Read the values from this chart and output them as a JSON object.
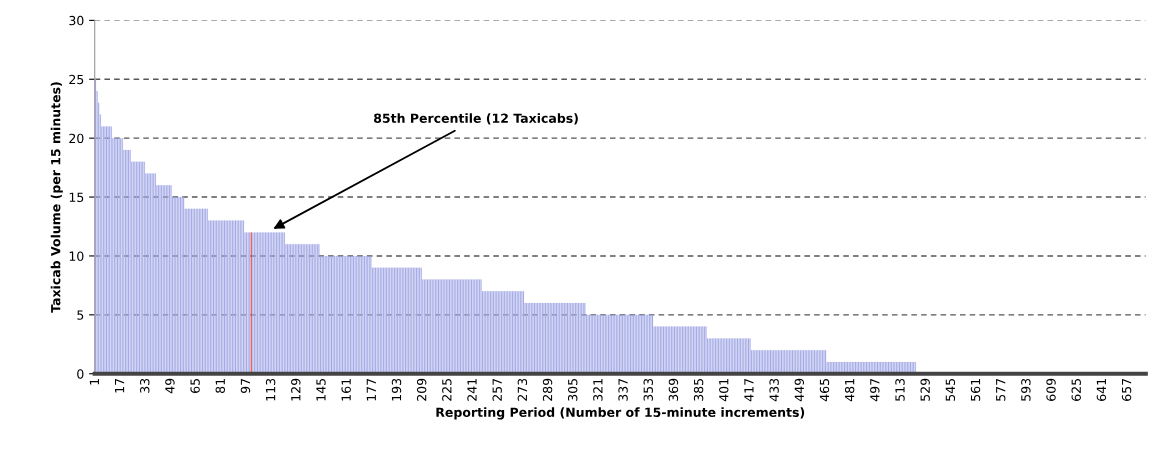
{
  "chart_data": {
    "type": "bar",
    "xlabel": "Reporting Period (Number of 15-minute increments)",
    "ylabel": "Taxicab Volume (per 15 minutes)",
    "ylim": [
      0,
      30
    ],
    "yticks": [
      0,
      5,
      10,
      15,
      20,
      25,
      30
    ],
    "grid": "y",
    "line_style": "dashed",
    "annotations": [
      "85th Percentile (12 Taxicabs)"
    ],
    "categories": [
      "1",
      null,
      null,
      null,
      null,
      null,
      null,
      null,
      null,
      null,
      null,
      null,
      null,
      null,
      null,
      null,
      "17",
      null,
      null,
      null,
      null,
      null,
      null,
      null,
      null,
      null,
      null,
      null,
      null,
      null,
      null,
      null,
      "33",
      null,
      null,
      null,
      null,
      null,
      null,
      null,
      null,
      null,
      null,
      null,
      null,
      null,
      null,
      null,
      "49",
      null,
      null,
      null,
      null,
      null,
      null,
      null,
      null,
      null,
      null,
      null,
      null,
      null,
      null,
      null,
      "65",
      null,
      null,
      null,
      null,
      null,
      null,
      null,
      null,
      null,
      null,
      null,
      null,
      null,
      null,
      null,
      "81",
      null,
      null,
      null,
      null,
      null,
      null,
      null,
      null,
      null,
      null,
      null,
      null,
      null,
      null,
      null,
      "97",
      null,
      null,
      null,
      null,
      null,
      null,
      null,
      null,
      null,
      null,
      null,
      null,
      null,
      null,
      null,
      "113",
      null,
      null,
      null,
      null,
      null,
      null,
      null,
      null,
      null,
      null,
      null,
      null,
      null,
      null,
      null,
      "129",
      null,
      null,
      null,
      null,
      null,
      null,
      null,
      null,
      null,
      null,
      null,
      null,
      null,
      null,
      null,
      "145",
      null,
      null,
      null,
      null,
      null,
      null,
      null,
      null,
      null,
      null,
      null,
      null,
      null,
      null,
      null,
      "161",
      null,
      null,
      null,
      null,
      null,
      null,
      null,
      null,
      null,
      null,
      null,
      null,
      null,
      null,
      null,
      "177",
      null,
      null,
      null,
      null,
      null,
      null,
      null,
      null,
      null,
      null,
      null,
      null,
      null,
      null,
      null,
      "193",
      null,
      null,
      null,
      null,
      null,
      null,
      null,
      null,
      null,
      null,
      null,
      null,
      null,
      null,
      null,
      "209",
      null,
      null,
      null,
      null,
      null,
      null,
      null,
      null,
      null,
      null,
      null,
      null,
      null,
      null,
      null,
      "225",
      null,
      null,
      null,
      null,
      null,
      null,
      null,
      null,
      null,
      null,
      null,
      null,
      null,
      null,
      null,
      "241",
      null,
      null,
      null,
      null,
      null,
      null,
      null,
      null,
      null,
      null,
      null,
      null,
      null,
      null,
      null,
      "257",
      null,
      null,
      null,
      null,
      null,
      null,
      null,
      null,
      null,
      null,
      null,
      null,
      null,
      null,
      null,
      "273",
      null,
      null,
      null,
      null,
      null,
      null,
      null,
      null,
      null,
      null,
      null,
      null,
      null,
      null,
      null,
      "289",
      null,
      null,
      null,
      null,
      null,
      null,
      null,
      null,
      null,
      null,
      null,
      null,
      null,
      null,
      null,
      "305",
      null,
      null,
      null,
      null,
      null,
      null,
      null,
      null,
      null,
      null,
      null,
      null,
      null,
      null,
      null,
      "321",
      null,
      null,
      null,
      null,
      null,
      null,
      null,
      null,
      null,
      null,
      null,
      null,
      null,
      null,
      null,
      "337",
      null,
      null,
      null,
      null,
      null,
      null,
      null,
      null,
      null,
      null,
      null,
      null,
      null,
      null,
      null,
      "353",
      null,
      null,
      null,
      null,
      null,
      null,
      null,
      null,
      null,
      null,
      null,
      null,
      null,
      null,
      null,
      "369",
      null,
      null,
      null,
      null,
      null,
      null,
      null,
      null,
      null,
      null,
      null,
      null,
      null,
      null,
      null,
      "385",
      null,
      null,
      null,
      null,
      null,
      null,
      null,
      null,
      null,
      null,
      null,
      null,
      null,
      null,
      null,
      "401",
      null,
      null,
      null,
      null,
      null,
      null,
      null,
      null,
      null,
      null,
      null,
      null,
      null,
      null,
      null,
      "417",
      null,
      null,
      null,
      null,
      null,
      null,
      null,
      null,
      null,
      null,
      null,
      null,
      null,
      null,
      null,
      "433",
      null,
      null,
      null,
      null,
      null,
      null,
      null,
      null,
      null,
      null,
      null,
      null,
      null,
      null,
      null,
      "449",
      null,
      null,
      null,
      null,
      null,
      null,
      null,
      null,
      null,
      null,
      null,
      null,
      null,
      null,
      null,
      "465",
      null,
      null,
      null,
      null,
      null,
      null,
      null,
      null,
      null,
      null,
      null,
      null,
      null,
      null,
      null,
      "481",
      null,
      null,
      null,
      null,
      null,
      null,
      null,
      null,
      null,
      null,
      null,
      null,
      null,
      null,
      null,
      "497",
      null,
      null,
      null,
      null,
      null,
      null,
      null,
      null,
      null,
      null,
      null,
      null,
      null,
      null,
      null,
      "513",
      null,
      null,
      null,
      null,
      null,
      null,
      null,
      null,
      null,
      null,
      null,
      null,
      null,
      null,
      null,
      "529",
      null,
      null,
      null,
      null,
      null,
      null,
      null,
      null,
      null,
      null,
      null,
      null,
      null,
      null,
      null,
      "545",
      null,
      null,
      null,
      null,
      null,
      null,
      null,
      null,
      null,
      null,
      null,
      null,
      null,
      null,
      null,
      "561",
      null,
      null,
      null,
      null,
      null,
      null,
      null,
      null,
      null,
      null,
      null,
      null,
      null,
      null,
      null,
      "577",
      null,
      null,
      null,
      null,
      null,
      null,
      null,
      null,
      null,
      null,
      null,
      null,
      null,
      null,
      null,
      "593",
      null,
      null,
      null,
      null,
      null,
      null,
      null,
      null,
      null,
      null,
      null,
      null,
      null,
      null,
      null,
      "609",
      null,
      null,
      null,
      null,
      null,
      null,
      null,
      null,
      null,
      null,
      null,
      null,
      null,
      null,
      null,
      "625",
      null,
      null,
      null,
      null,
      null,
      null,
      null,
      null,
      null,
      null,
      null,
      null,
      null,
      null,
      null,
      "641",
      null,
      null,
      null,
      null,
      null,
      null,
      null,
      null,
      null,
      null,
      null,
      null,
      null,
      null,
      null,
      "657",
      null,
      null,
      null,
      null,
      null,
      null,
      null,
      null,
      null,
      null,
      null
    ],
    "values": [
      25,
      24,
      23,
      22,
      21,
      21,
      21,
      21,
      21,
      21,
      21,
      20,
      20,
      20,
      20,
      20,
      20,
      20,
      19,
      19,
      19,
      19,
      19,
      18,
      18,
      18,
      18,
      18,
      18,
      18,
      18,
      18,
      17,
      17,
      17,
      17,
      17,
      17,
      17,
      16,
      16,
      16,
      16,
      16,
      16,
      16,
      16,
      16,
      16,
      15,
      15,
      15,
      15,
      15,
      15,
      15,
      15,
      14,
      14,
      14,
      14,
      14,
      14,
      14,
      14,
      14,
      14,
      14,
      14,
      14,
      14,
      14,
      13,
      13,
      13,
      13,
      13,
      13,
      13,
      13,
      13,
      13,
      13,
      13,
      13,
      13,
      13,
      13,
      13,
      13,
      13,
      13,
      13,
      13,
      13,
      12,
      12,
      12,
      12,
      12,
      12,
      12,
      12,
      12,
      12,
      12,
      12,
      12,
      12,
      12,
      12,
      12,
      12,
      12,
      12,
      12,
      12,
      12,
      12,
      12,
      12,
      11,
      11,
      11,
      11,
      11,
      11,
      11,
      11,
      11,
      11,
      11,
      11,
      11,
      11,
      11,
      11,
      11,
      11,
      11,
      11,
      11,
      11,
      10,
      10,
      10,
      10,
      10,
      10,
      10,
      10,
      10,
      10,
      10,
      10,
      10,
      10,
      10,
      10,
      10,
      10,
      10,
      10,
      10,
      10,
      10,
      10,
      10,
      10,
      10,
      10,
      10,
      10,
      10,
      10,
      10,
      9,
      9,
      9,
      9,
      9,
      9,
      9,
      9,
      9,
      9,
      9,
      9,
      9,
      9,
      9,
      9,
      9,
      9,
      9,
      9,
      9,
      9,
      9,
      9,
      9,
      9,
      9,
      9,
      9,
      9,
      9,
      9,
      8,
      8,
      8,
      8,
      8,
      8,
      8,
      8,
      8,
      8,
      8,
      8,
      8,
      8,
      8,
      8,
      8,
      8,
      8,
      8,
      8,
      8,
      8,
      8,
      8,
      8,
      8,
      8,
      8,
      8,
      8,
      8,
      8,
      8,
      8,
      8,
      8,
      8,
      7,
      7,
      7,
      7,
      7,
      7,
      7,
      7,
      7,
      7,
      7,
      7,
      7,
      7,
      7,
      7,
      7,
      7,
      7,
      7,
      7,
      7,
      7,
      7,
      7,
      7,
      7,
      6,
      6,
      6,
      6,
      6,
      6,
      6,
      6,
      6,
      6,
      6,
      6,
      6,
      6,
      6,
      6,
      6,
      6,
      6,
      6,
      6,
      6,
      6,
      6,
      6,
      6,
      6,
      6,
      6,
      6,
      6,
      6,
      6,
      6,
      6,
      6,
      6,
      6,
      6,
      5,
      5,
      5,
      5,
      5,
      5,
      5,
      5,
      5,
      5,
      5,
      5,
      5,
      5,
      5,
      5,
      5,
      5,
      5,
      5,
      5,
      5,
      5,
      5,
      5,
      5,
      5,
      5,
      5,
      5,
      5,
      5,
      5,
      5,
      5,
      5,
      5,
      5,
      5,
      5,
      5,
      5,
      5,
      4,
      4,
      4,
      4,
      4,
      4,
      4,
      4,
      4,
      4,
      4,
      4,
      4,
      4,
      4,
      4,
      4,
      4,
      4,
      4,
      4,
      4,
      4,
      4,
      4,
      4,
      4,
      4,
      4,
      4,
      4,
      4,
      4,
      4,
      3,
      3,
      3,
      3,
      3,
      3,
      3,
      3,
      3,
      3,
      3,
      3,
      3,
      3,
      3,
      3,
      3,
      3,
      3,
      3,
      3,
      3,
      3,
      3,
      3,
      3,
      3,
      3,
      2,
      2,
      2,
      2,
      2,
      2,
      2,
      2,
      2,
      2,
      2,
      2,
      2,
      2,
      2,
      2,
      2,
      2,
      2,
      2,
      2,
      2,
      2,
      2,
      2,
      2,
      2,
      2,
      2,
      2,
      2,
      2,
      2,
      2,
      2,
      2,
      2,
      2,
      2,
      2,
      2,
      2,
      2,
      2,
      2,
      2,
      2,
      2,
      1,
      1,
      1,
      1,
      1,
      1,
      1,
      1,
      1,
      1,
      1,
      1,
      1,
      1,
      1,
      1,
      1,
      1,
      1,
      1,
      1,
      1,
      1,
      1,
      1,
      1,
      1,
      1,
      1,
      1,
      1,
      1,
      1,
      1,
      1,
      1,
      1,
      1,
      1,
      1,
      1,
      1,
      1,
      1,
      1,
      1,
      1,
      1,
      1,
      1,
      1,
      1,
      1,
      1,
      1,
      1,
      1,
      0,
      0,
      0,
      0,
      0,
      0,
      0,
      0,
      0,
      0,
      0,
      0,
      0,
      0,
      0,
      0,
      0,
      0,
      0,
      0,
      0,
      0,
      0,
      0,
      0,
      0,
      0,
      0,
      0,
      0,
      0,
      0,
      0,
      0,
      0,
      0,
      0,
      0,
      0,
      0,
      0,
      0,
      0,
      0,
      0,
      0,
      0,
      0,
      0,
      0,
      0,
      0,
      0,
      0,
      0,
      0,
      0,
      0,
      0,
      0,
      0,
      0,
      0,
      0,
      0,
      0,
      0,
      0,
      0,
      0,
      0,
      0,
      0,
      0,
      0,
      0,
      0,
      0,
      0,
      0,
      0,
      0,
      0,
      0,
      0,
      0,
      0,
      0,
      0,
      0,
      0,
      0,
      0,
      0,
      0,
      0,
      0,
      0,
      0,
      0,
      0,
      0,
      0,
      0,
      0,
      0,
      0,
      0,
      0,
      0,
      0,
      0,
      0,
      0,
      0,
      0,
      0,
      0,
      0,
      0,
      0,
      0,
      0,
      0,
      0,
      0,
      0,
      0,
      0,
      0,
      0,
      0,
      0,
      0,
      0,
      0,
      0,
      0,
      0,
      0,
      0,
      0,
      0,
      0,
      0,
      0
    ],
    "colors": [
      "#a3a9e6",
      "#a3a9e6",
      "#a3a9e6",
      "#a3a9e6",
      "#a3a9e6",
      "#a3a9e6",
      "#a3a9e6",
      "#a3a9e6",
      "#a3a9e6",
      "#a3a9e6",
      "#a3a9e6",
      "#a3a9e6",
      "#a3a9e6",
      "#a3a9e6",
      "#a3a9e6",
      "#a3a9e6",
      "#a3a9e6",
      "#a3a9e6",
      "#a3a9e6",
      "#a3a9e6",
      "#a3a9e6",
      "#a3a9e6",
      "#a3a9e6",
      "#a3a9e6",
      "#a3a9e6",
      "#a3a9e6",
      "#a3a9e6",
      "#a3a9e6",
      "#a3a9e6",
      "#a3a9e6",
      "#a3a9e6",
      "#a3a9e6",
      "#a3a9e6",
      "#a3a9e6",
      "#a3a9e6",
      "#a3a9e6",
      "#a3a9e6",
      "#a3a9e6",
      "#a3a9e6",
      "#a3a9e6",
      "#a3a9e6",
      "#a3a9e6",
      "#a3a9e6",
      "#a3a9e6",
      "#a3a9e6",
      "#a3a9e6",
      "#a3a9e6",
      "#a3a9e6",
      "#a3a9e6",
      "#a3a9e6",
      "#a3a9e6",
      "#a3a9e6",
      "#a3a9e6",
      "#a3a9e6",
      "#a3a9e6",
      "#a3a9e6",
      "#a3a9e6",
      "#a3a9e6",
      "#a3a9e6",
      "#a3a9e6",
      "#a3a9e6",
      "#a3a9e6",
      "#a3a9e6",
      "#a3a9e6",
      "#a3a9e6",
      "#a3a9e6",
      "#a3a9e6",
      "#a3a9e6",
      "#a3a9e6",
      "#a3a9e6",
      "#a3a9e6",
      "#a3a9e6",
      "#a3a9e6",
      "#a3a9e6",
      "#a3a9e6",
      "#a3a9e6",
      "#a3a9e6",
      "#a3a9e6",
      "#a3a9e6",
      "#a3a9e6",
      "#a3a9e6",
      "#a3a9e6",
      "#a3a9e6",
      "#a3a9e6",
      "#a3a9e6",
      "#a3a9e6",
      "#a3a9e6",
      "#a3a9e6",
      "#a3a9e6",
      "#a3a9e6",
      "#a3a9e6",
      "#a3a9e6",
      "#a3a9e6",
      "#a3a9e6",
      "#a3a9e6",
      "#a3a9e6",
      "#a3a9e6",
      "#a3a9e6",
      "#a3a9e6",
      "#e03a3a",
      "#a3a9e6",
      "#a3a9e6",
      "#a3a9e6",
      "#a3a9e6",
      "#a3a9e6",
      "#a3a9e6",
      "#a3a9e6",
      "#a3a9e6",
      "#a3a9e6",
      "#a3a9e6",
      "#a3a9e6",
      "#a3a9e6",
      "#a3a9e6",
      "#a3a9e6",
      "#a3a9e6",
      "#a3a9e6",
      "#a3a9e6",
      "#a3a9e6",
      "#a3a9e6",
      "#a3a9e6",
      "#a3a9e6",
      "#a3a9e6",
      "#a3a9e6",
      "#a3a9e6",
      "#a3a9e6",
      "#a3a9e6",
      "#a3a9e6",
      "#a3a9e6",
      "#a3a9e6",
      "#a3a9e6",
      "#a3a9e6",
      "#a3a9e6",
      "#a3a9e6",
      "#a3a9e6",
      "#a3a9e6",
      "#a3a9e6",
      "#a3a9e6",
      "#a3a9e6",
      "#a3a9e6",
      "#a3a9e6",
      "#a3a9e6",
      "#a3a9e6",
      "#a3a9e6",
      "#a3a9e6",
      "#a3a9e6",
      "#a3a9e6",
      "#a3a9e6",
      "#a3a9e6",
      "#a3a9e6",
      "#a3a9e6",
      "#a3a9e6",
      "#a3a9e6",
      "#a3a9e6",
      "#a3a9e6",
      "#a3a9e6",
      "#a3a9e6",
      "#a3a9e6",
      "#a3a9e6",
      "#a3a9e6",
      "#a3a9e6",
      "#a3a9e6",
      "#a3a9e6",
      "#a3a9e6",
      "#a3a9e6",
      "#a3a9e6",
      "#a3a9e6",
      "#a3a9e6",
      "#a3a9e6",
      "#a3a9e6",
      "#a3a9e6",
      "#a3a9e6",
      "#a3a9e6",
      "#a3a9e6",
      "#a3a9e6",
      "#a3a9e6",
      "#a3a9e6",
      "#a3a9e6",
      "#a3a9e6",
      "#a3a9e6",
      "#a3a9e6",
      "#a3a9e6",
      "#a3a9e6",
      "#a3a9e6",
      "#a3a9e6",
      "#a3a9e6",
      "#a3a9e6",
      "#a3a9e6",
      "#a3a9e6",
      "#a3a9e6",
      "#a3a9e6",
      "#a3a9e6",
      "#a3a9e6",
      "#a3a9e6",
      "#a3a9e6",
      "#a3a9e6",
      "#a3a9e6",
      "#a3a9e6",
      "#a3a9e6",
      "#a3a9e6",
      "#a3a9e6",
      "#a3a9e6",
      "#a3a9e6",
      "#a3a9e6",
      "#a3a9e6",
      "#a3a9e6",
      "#a3a9e6",
      "#a3a9e6",
      "#a3a9e6",
      "#a3a9e6",
      "#a3a9e6",
      "#a3a9e6",
      "#a3a9e6",
      "#a3a9e6",
      "#a3a9e6",
      "#a3a9e6",
      "#a3a9e6",
      "#a3a9e6",
      "#a3a9e6",
      "#a3a9e6",
      "#a3a9e6",
      "#a3a9e6",
      "#a3a9e6",
      "#a3a9e6",
      "#a3a9e6",
      "#a3a9e6",
      "#a3a9e6",
      "#a3a9e6",
      "#a3a9e6",
      "#a3a9e6",
      "#a3a9e6",
      "#a3a9e6",
      "#a3a9e6",
      "#a3a9e6",
      "#a3a9e6",
      "#a3a9e6",
      "#a3a9e6",
      "#a3a9e6",
      "#a3a9e6",
      "#a3a9e6",
      "#a3a9e6",
      "#a3a9e6",
      "#a3a9e6",
      "#a3a9e6",
      "#a3a9e6",
      "#a3a9e6",
      "#a3a9e6",
      "#a3a9e6",
      "#a3a9e6",
      "#a3a9e6",
      "#a3a9e6",
      "#a3a9e6",
      "#a3a9e6",
      "#a3a9e6",
      "#a3a9e6",
      "#a3a9e6",
      "#a3a9e6",
      "#a3a9e6",
      "#a3a9e6",
      "#a3a9e6",
      "#a3a9e6",
      "#a3a9e6",
      "#a3a9e6",
      "#a3a9e6",
      "#a3a9e6",
      "#a3a9e6",
      "#a3a9e6",
      "#a3a9e6",
      "#a3a9e6",
      "#a3a9e6",
      "#a3a9e6",
      "#a3a9e6",
      "#a3a9e6",
      "#a3a9e6",
      "#a3a9e6",
      "#a3a9e6",
      "#a3a9e6",
      "#a3a9e6",
      "#a3a9e6",
      "#a3a9e6",
      "#a3a9e6",
      "#a3a9e6",
      "#a3a9e6",
      "#a3a9e6",
      "#a3a9e6",
      "#a3a9e6",
      "#a3a9e6",
      "#a3a9e6",
      "#a3a9e6",
      "#a3a9e6",
      "#a3a9e6",
      "#a3a9e6",
      "#a3a9e6",
      "#a3a9e6",
      "#a3a9e6",
      "#a3a9e6",
      "#a3a9e6",
      "#a3a9e6",
      "#a3a9e6",
      "#a3a9e6",
      "#a3a9e6",
      "#a3a9e6",
      "#a3a9e6",
      "#a3a9e6",
      "#a3a9e6",
      "#a3a9e6",
      "#a3a9e6",
      "#a3a9e6",
      "#a3a9e6",
      "#a3a9e6",
      "#a3a9e6",
      "#a3a9e6",
      "#a3a9e6",
      "#a3a9e6",
      "#a3a9e6",
      "#a3a9e6",
      "#a3a9e6",
      "#a3a9e6",
      "#a3a9e6",
      "#a3a9e6",
      "#a3a9e6",
      "#a3a9e6",
      "#a3a9e6",
      "#a3a9e6",
      "#a3a9e6",
      "#a3a9e6",
      "#a3a9e6",
      "#a3a9e6",
      "#a3a9e6",
      "#a3a9e6",
      "#a3a9e6",
      "#a3a9e6",
      "#a3a9e6",
      "#a3a9e6",
      "#a3a9e6",
      "#a3a9e6",
      "#a3a9e6",
      "#a3a9e6",
      "#a3a9e6",
      "#a3a9e6",
      "#a3a9e6",
      "#a3a9e6",
      "#a3a9e6",
      "#a3a9e6",
      "#a3a9e6",
      "#a3a9e6",
      "#a3a9e6",
      "#a3a9e6",
      "#a3a9e6",
      "#a3a9e6",
      "#a3a9e6",
      "#a3a9e6",
      "#a3a9e6",
      "#a3a9e6",
      "#a3a9e6",
      "#a3a9e6",
      "#a3a9e6",
      "#a3a9e6",
      "#a3a9e6",
      "#a3a9e6",
      "#a3a9e6",
      "#a3a9e6",
      "#a3a9e6",
      "#a3a9e6",
      "#a3a9e6",
      "#a3a9e6",
      "#a3a9e6",
      "#a3a9e6",
      "#a3a9e6",
      "#a3a9e6",
      "#a3a9e6",
      "#a3a9e6",
      "#a3a9e6",
      "#a3a9e6",
      "#a3a9e6",
      "#a3a9e6",
      "#a3a9e6",
      "#a3a9e6",
      "#a3a9e6",
      "#a3a9e6",
      "#a3a9e6",
      "#a3a9e6",
      "#a3a9e6",
      "#a3a9e6",
      "#a3a9e6",
      "#a3a9e6",
      "#a3a9e6",
      "#a3a9e6",
      "#a3a9e6",
      "#a3a9e6",
      "#a3a9e6",
      "#a3a9e6",
      "#a3a9e6",
      "#a3a9e6",
      "#a3a9e6",
      "#a3a9e6",
      "#a3a9e6",
      "#a3a9e6",
      "#a3a9e6",
      "#a3a9e6",
      "#a3a9e6",
      "#a3a9e6",
      "#a3a9e6",
      "#a3a9e6",
      "#a3a9e6",
      "#a3a9e6",
      "#a3a9e6",
      "#a3a9e6",
      "#a3a9e6",
      "#a3a9e6",
      "#a3a9e6",
      "#a3a9e6",
      "#a3a9e6",
      "#a3a9e6",
      "#a3a9e6",
      "#a3a9e6",
      "#a3a9e6",
      "#a3a9e6",
      "#a3a9e6",
      "#a3a9e6",
      "#a3a9e6",
      "#a3a9e6",
      "#a3a9e6",
      "#a3a9e6",
      "#a3a9e6",
      "#a3a9e6",
      "#a3a9e6",
      "#a3a9e6",
      "#a3a9e6",
      "#a3a9e6",
      "#a3a9e6",
      "#a3a9e6",
      "#a3a9e6",
      "#a3a9e6",
      "#a3a9e6",
      "#a3a9e6",
      "#a3a9e6",
      "#a3a9e6",
      "#a3a9e6",
      "#a3a9e6",
      "#a3a9e6",
      "#a3a9e6",
      "#a3a9e6",
      "#a3a9e6",
      "#a3a9e6",
      "#a3a9e6",
      "#a3a9e6",
      "#a3a9e6",
      "#a3a9e6",
      "#a3a9e6",
      "#a3a9e6",
      "#a3a9e6",
      "#a3a9e6",
      "#a3a9e6",
      "#a3a9e6",
      "#a3a9e6",
      "#a3a9e6",
      "#a3a9e6",
      "#a3a9e6",
      "#a3a9e6",
      "#a3a9e6",
      "#a3a9e6",
      "#a3a9e6",
      "#a3a9e6",
      "#a3a9e6",
      "#a3a9e6",
      "#a3a9e6",
      "#a3a9e6",
      "#a3a9e6",
      "#a3a9e6",
      "#a3a9e6",
      "#a3a9e6",
      "#a3a9e6",
      "#a3a9e6",
      "#a3a9e6",
      "#a3a9e6",
      "#a3a9e6",
      "#a3a9e6",
      "#a3a9e6",
      "#a3a9e6",
      "#a3a9e6",
      "#a3a9e6",
      "#a3a9e6",
      "#a3a9e6",
      "#a3a9e6",
      "#a3a9e6",
      "#a3a9e6",
      "#a3a9e6",
      "#a3a9e6",
      "#a3a9e6",
      "#a3a9e6",
      "#a3a9e6",
      "#a3a9e6",
      "#a3a9e6",
      "#a3a9e6",
      "#a3a9e6",
      "#a3a9e6",
      "#a3a9e6",
      "#a3a9e6",
      "#a3a9e6",
      "#a3a9e6",
      "#a3a9e6",
      "#a3a9e6",
      "#a3a9e6",
      "#a3a9e6",
      "#a3a9e6",
      "#a3a9e6",
      "#a3a9e6",
      "#a3a9e6",
      "#a3a9e6",
      "#a3a9e6",
      "#a3a9e6",
      "#a3a9e6",
      "#a3a9e6",
      "#a3a9e6",
      "#a3a9e6",
      "#a3a9e6",
      "#a3a9e6",
      "#a3a9e6",
      "#a3a9e6",
      "#a3a9e6",
      "#a3a9e6",
      "#a3a9e6",
      "#a3a9e6",
      "#a3a9e6",
      "#a3a9e6",
      "#a3a9e6",
      "#a3a9e6",
      "#a3a9e6",
      "#a3a9e6",
      "#a3a9e6",
      "#a3a9e6",
      "#a3a9e6",
      "#a3a9e6",
      "#a3a9e6",
      "#a3a9e6",
      "#a3a9e6",
      "#a3a9e6",
      "#a3a9e6",
      "#a3a9e6",
      "#a3a9e6",
      "#a3a9e6",
      "#a3a9e6",
      "#a3a9e6",
      "#a3a9e6",
      "#a3a9e6",
      "#a3a9e6",
      "#a3a9e6",
      "#a3a9e6",
      "#a3a9e6",
      "#a3a9e6",
      "#a3a9e6",
      "#a3a9e6",
      "#a3a9e6",
      "#a3a9e6",
      "#a3a9e6",
      "#a3a9e6",
      "#a3a9e6",
      "#a3a9e6",
      "#a3a9e6",
      "#a3a9e6",
      "#a3a9e6",
      "#a3a9e6",
      "#a3a9e6",
      "#a3a9e6",
      "#a3a9e6",
      "#a3a9e6",
      "#a3a9e6",
      "#a3a9e6",
      "#a3a9e6",
      "#a3a9e6",
      "#a3a9e6",
      "#a3a9e6",
      "#a3a9e6",
      "#a3a9e6",
      "#a3a9e6",
      "#a3a9e6",
      "#a3a9e6",
      "#a3a9e6",
      "#a3a9e6",
      "#a3a9e6",
      "#a3a9e6",
      "#a3a9e6",
      "#a3a9e6",
      "#a3a9e6",
      "#a3a9e6",
      "#a3a9e6",
      "#a3a9e6",
      "#a3a9e6",
      "#a3a9e6",
      "#a3a9e6",
      "#a3a9e6",
      "#a3a9e6",
      "#a3a9e6",
      "#a3a9e6",
      "#a3a9e6",
      "#a3a9e6",
      "#a3a9e6",
      "#a3a9e6",
      "#a3a9e6",
      "#a3a9e6",
      "#a3a9e6",
      "#a3a9e6",
      "#a3a9e6",
      "#a3a9e6",
      "#a3a9e6",
      "#a3a9e6",
      "#a3a9e6",
      "#a3a9e6",
      "#a3a9e6",
      "#a3a9e6",
      "#a3a9e6",
      "#a3a9e6",
      "#a3a9e6",
      "#a3a9e6",
      "#a3a9e6",
      "#a3a9e6",
      "#a3a9e6",
      "#a3a9e6",
      "#a3a9e6",
      "#a3a9e6",
      "#a3a9e6",
      "#a3a9e6",
      "#a3a9e6",
      "#a3a9e6",
      "#a3a9e6",
      "#a3a9e6",
      "#a3a9e6",
      "#a3a9e6",
      "#a3a9e6",
      "#a3a9e6",
      "#a3a9e6",
      "#a3a9e6",
      "#a3a9e6",
      "#a3a9e6",
      "#a3a9e6",
      "#a3a9e6",
      "#a3a9e6",
      "#a3a9e6",
      "#a3a9e6",
      "#a3a9e6",
      "#a3a9e6",
      "#a3a9e6",
      "#a3a9e6",
      "#a3a9e6",
      "#a3a9e6",
      "#a3a9e6",
      "#a3a9e6",
      "#a3a9e6",
      "#a3a9e6",
      "#a3a9e6",
      "#a3a9e6",
      "#a3a9e6",
      "#a3a9e6",
      "#a3a9e6",
      "#a3a9e6",
      "#a3a9e6",
      "#a3a9e6",
      "#a3a9e6",
      "#a3a9e6",
      "#a3a9e6",
      "#a3a9e6",
      "#a3a9e6",
      "#a3a9e6",
      "#a3a9e6",
      "#a3a9e6",
      "#a3a9e6",
      "#a3a9e6",
      "#a3a9e6"
    ]
  }
}
